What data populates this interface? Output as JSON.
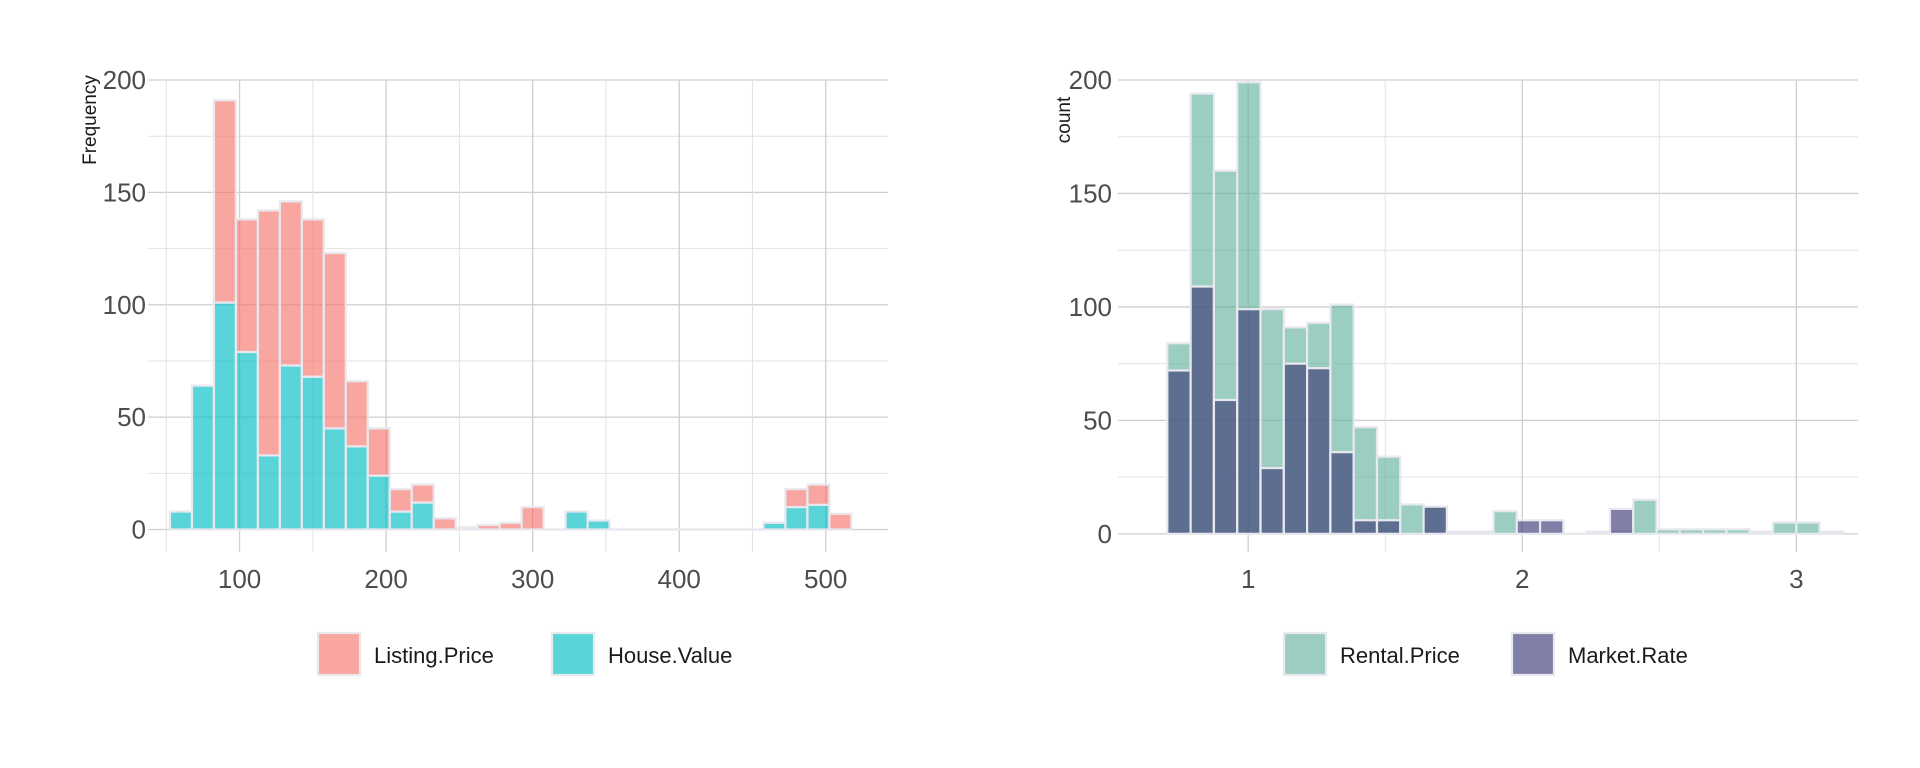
{
  "chart_data": [
    {
      "type": "bar",
      "stacked": true,
      "ylabel": "Frequency",
      "xlabel": "",
      "xlim": [
        37.5,
        542.5
      ],
      "ylim": [
        -10,
        200
      ],
      "xticks": [
        100,
        200,
        300,
        400,
        500
      ],
      "yticks": [
        0,
        50,
        100,
        150,
        200
      ],
      "bin_width": 15,
      "legend_position": "bottom",
      "x": [
        60,
        75,
        90,
        105,
        120,
        135,
        150,
        165,
        180,
        195,
        210,
        225,
        240,
        255,
        270,
        285,
        300,
        315,
        330,
        345,
        360,
        375,
        390,
        405,
        420,
        435,
        450,
        465,
        480,
        495,
        510
      ],
      "series": [
        {
          "name": "House.Value",
          "color": "#00bfc4",
          "values": [
            8,
            64,
            101,
            79,
            33,
            73,
            68,
            45,
            37,
            24,
            8,
            12,
            0,
            0,
            0,
            0,
            0,
            0,
            8,
            4,
            0,
            0,
            0,
            0,
            0,
            0,
            0,
            3,
            10,
            11,
            0
          ]
        },
        {
          "name": "Listing.Price",
          "color": "#f8766d",
          "values": [
            0,
            0,
            90,
            59,
            109,
            73,
            70,
            78,
            29,
            21,
            10,
            8,
            5,
            1,
            2,
            3,
            10,
            0,
            0,
            0,
            0,
            0,
            0,
            0,
            0,
            0,
            0,
            0,
            8,
            9,
            7
          ]
        }
      ],
      "legend": [
        {
          "name": "Listing.Price",
          "color": "#f8766d"
        },
        {
          "name": "House.Value",
          "color": "#00bfc4"
        }
      ]
    },
    {
      "type": "bar",
      "stacked": false,
      "ylabel": "count",
      "xlabel": "",
      "xlim": [
        0.525,
        3.225
      ],
      "ylim": [
        -8,
        200
      ],
      "xticks": [
        1,
        2,
        3
      ],
      "yticks": [
        0,
        50,
        100,
        150,
        200
      ],
      "bin_width": 0.085,
      "legend_position": "bottom",
      "x": [
        0.7475,
        0.8325,
        0.9175,
        1.0025,
        1.0875,
        1.1725,
        1.2575,
        1.3425,
        1.4275,
        1.5125,
        1.5975,
        1.6825,
        1.7675,
        1.8525,
        1.9375,
        2.0225,
        2.1075,
        2.1925,
        2.2775,
        2.3625,
        2.4475,
        2.5325,
        2.6175,
        2.7025,
        2.7875,
        2.8725,
        2.9575,
        3.0425,
        3.1275
      ],
      "series": [
        {
          "name": "Rental.Price",
          "color": "#66b2a0",
          "values": [
            84,
            194,
            160,
            199,
            99,
            91,
            93,
            101,
            47,
            34,
            13,
            12,
            1,
            1,
            10,
            0,
            0,
            0,
            1,
            1,
            15,
            2,
            2,
            2,
            2,
            1,
            5,
            5,
            1
          ]
        },
        {
          "name": "Market.Rate",
          "color": "#3c3b78",
          "values": [
            72,
            109,
            59,
            99,
            29,
            75,
            73,
            36,
            6,
            6,
            0,
            12,
            0,
            0,
            0,
            6,
            6,
            0,
            0,
            11,
            0,
            0,
            0,
            0,
            0,
            0,
            0,
            0,
            0
          ]
        }
      ],
      "legend": [
        {
          "name": "Rental.Price",
          "color": "#66b2a0"
        },
        {
          "name": "Market.Rate",
          "color": "#3c3b78"
        }
      ]
    }
  ]
}
